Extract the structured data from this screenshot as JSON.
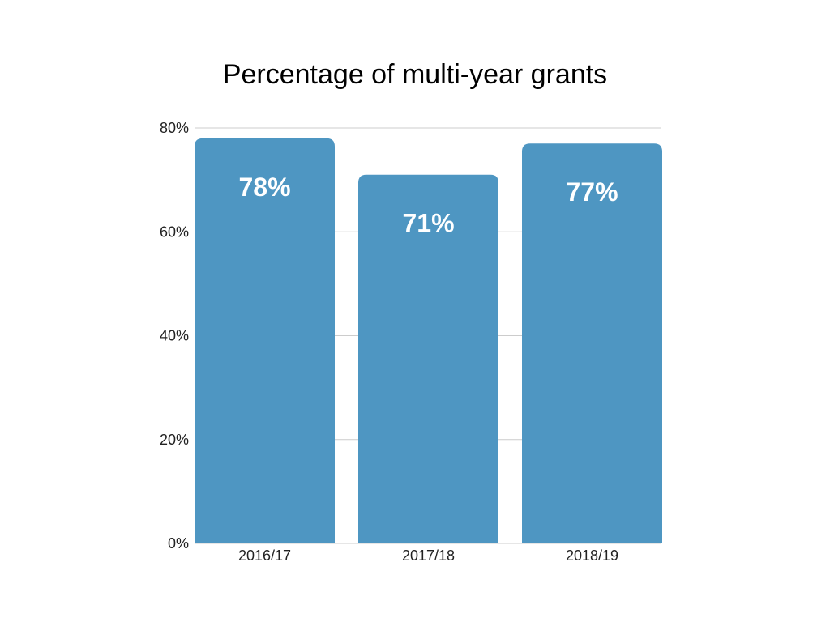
{
  "chart_data": {
    "type": "bar",
    "title": "Percentage of multi-year grants",
    "xlabel": "",
    "ylabel": "",
    "categories": [
      "2016/17",
      "2017/18",
      "2018/19"
    ],
    "values": [
      78,
      71,
      77
    ],
    "data_labels": [
      "78%",
      "71%",
      "77%"
    ],
    "yticks": [
      0,
      20,
      40,
      60,
      80
    ],
    "ytick_labels": [
      "0%",
      "20%",
      "40%",
      "60%",
      "80%"
    ],
    "ylim": [
      0,
      80
    ],
    "grid": true,
    "legend": "none",
    "bar_color": "#4e96c2"
  }
}
